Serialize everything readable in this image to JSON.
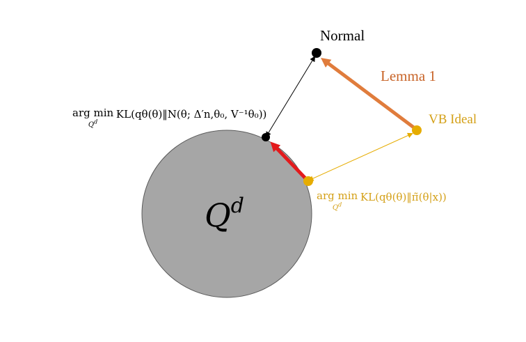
{
  "labels": {
    "normal": "Normal",
    "lemma": "Lemma 1",
    "vb_ideal": "VB Ideal",
    "set_name_base": "Q",
    "set_name_sup": "d",
    "normal_projection": {
      "op": "arg min",
      "sub": "Q",
      "sub_sup": "d",
      "expr": "KL(qθ(θ)‖N(θ; Δ′n,θ₀, V⁻¹θ₀))"
    },
    "vb_projection": {
      "op": "arg min",
      "sub": "Q",
      "sub_sup": "d",
      "expr": "KL(qθ(θ)‖π̃(θ|x))"
    }
  },
  "colors": {
    "circle_fill": "#a6a6a6",
    "circle_stroke": "#5a5a5a",
    "black": "#000000",
    "orange": "#e07c3c",
    "gold": "#e6ac00",
    "gold_text": "#d4a017",
    "red": "#e31a1c",
    "orange_text": "#c86428"
  }
}
